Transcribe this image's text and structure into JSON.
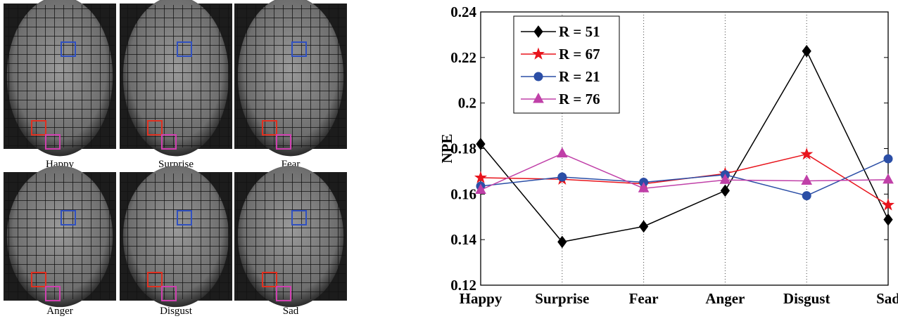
{
  "panels": {
    "labels": [
      "Happy",
      "Surprise",
      "Fear",
      "Anger",
      "Disgust",
      "Sad"
    ]
  },
  "chart_data": {
    "type": "line",
    "ylabel": "NPE",
    "categories": [
      "Happy",
      "Surprise",
      "Fear",
      "Anger",
      "Disgust",
      "Sad"
    ],
    "ylim": [
      0.12,
      0.24
    ],
    "yticks": [
      0.12,
      0.14,
      0.16,
      0.18,
      0.2,
      0.22,
      0.24
    ],
    "xgrid": true,
    "legend": "upper-left",
    "series": [
      {
        "name": "R = 51",
        "color": "#000000",
        "marker": "diamond",
        "values": [
          0.182,
          0.139,
          0.1458,
          0.1615,
          0.2228,
          0.1488
        ]
      },
      {
        "name": "R = 67",
        "color": "#e8141c",
        "marker": "star",
        "values": [
          0.1672,
          0.1665,
          0.1645,
          0.169,
          0.1775,
          0.1552
        ]
      },
      {
        "name": "R = 21",
        "color": "#2b4ea6",
        "marker": "circle",
        "values": [
          0.1635,
          0.1675,
          0.1652,
          0.1685,
          0.1593,
          0.1755
        ]
      },
      {
        "name": "R = 76",
        "color": "#c040a8",
        "marker": "triangle",
        "values": [
          0.1618,
          0.1778,
          0.1625,
          0.1662,
          0.1658,
          0.1663
        ]
      }
    ]
  }
}
